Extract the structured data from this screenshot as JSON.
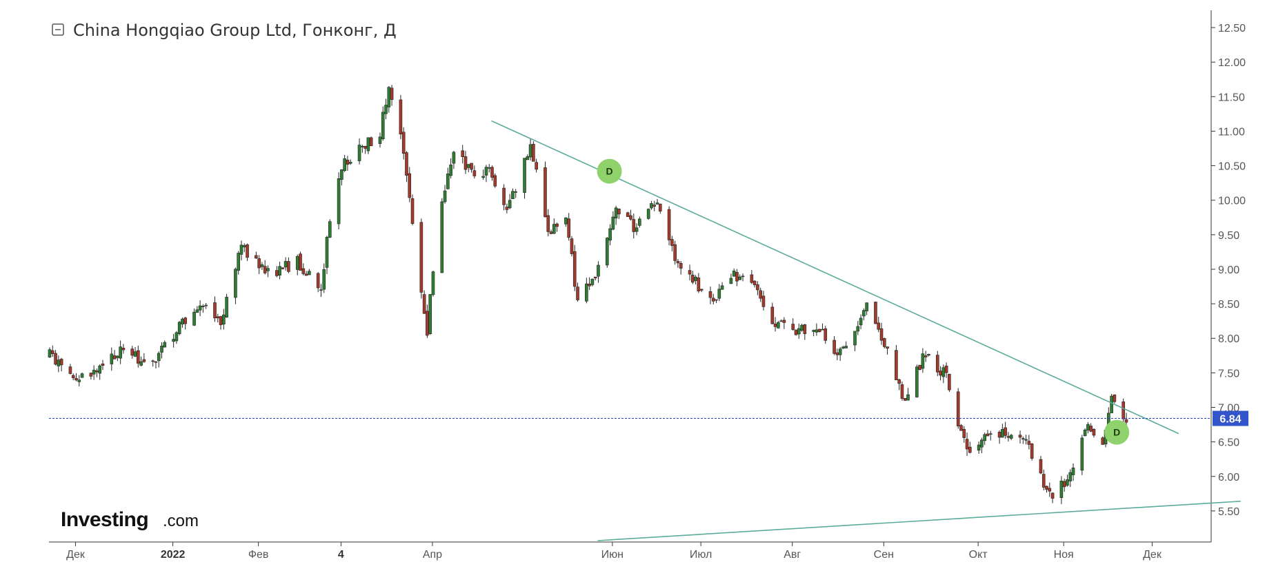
{
  "chart_title": "China Hongqiao Group Ltd, Гонконг, Д",
  "logo": {
    "brand": "Investing",
    "suffix": ".com"
  },
  "colors": {
    "up": "#2e7d32",
    "down": "#a33a2c",
    "trendline": "#5aab9a",
    "price_line": "#2244bb",
    "price_badge": "#3355cc",
    "dividend_marker": "#8fd16a"
  },
  "chart_data": {
    "type": "candlestick",
    "title": "China Hongqiao Group Ltd, Гонконг, Д",
    "ylim": [
      5.05,
      12.75
    ],
    "y_ticks": [
      "12.50",
      "12.00",
      "11.50",
      "11.00",
      "10.50",
      "10.00",
      "9.50",
      "9.00",
      "8.50",
      "8.00",
      "7.50",
      "7.00",
      "6.50",
      "6.00",
      "5.50"
    ],
    "y_tick_values": [
      12.5,
      12.0,
      11.5,
      11.0,
      10.5,
      10.0,
      9.5,
      9.0,
      8.5,
      8.0,
      7.5,
      7.0,
      6.5,
      6.0,
      5.5
    ],
    "x_axis": {
      "start": "2021-11-22",
      "end": "2022-12-21",
      "ticks": [
        {
          "label": "Дек",
          "date": "2021-12-01",
          "bold": false
        },
        {
          "label": "2022",
          "date": "2022-01-03",
          "bold": true
        },
        {
          "label": "Фев",
          "date": "2022-02-01",
          "bold": false
        },
        {
          "label": "4",
          "date": "2022-03-01",
          "bold": true
        },
        {
          "label": "Апр",
          "date": "2022-04-01",
          "bold": false
        },
        {
          "label": "Июн",
          "date": "2022-06-01",
          "bold": false
        },
        {
          "label": "Июл",
          "date": "2022-07-01",
          "bold": false
        },
        {
          "label": "Авг",
          "date": "2022-08-01",
          "bold": false
        },
        {
          "label": "Сен",
          "date": "2022-09-01",
          "bold": false
        },
        {
          "label": "Окт",
          "date": "2022-10-03",
          "bold": false
        },
        {
          "label": "Ноя",
          "date": "2022-11-01",
          "bold": false
        },
        {
          "label": "Дек",
          "date": "2022-12-01",
          "bold": false
        }
      ]
    },
    "last_price": 6.84,
    "last_price_label": "6.84",
    "close_path": [
      [
        "2021-11-22",
        7.75
      ],
      [
        "2021-11-30",
        7.4
      ],
      [
        "2021-12-08",
        7.5
      ],
      [
        "2021-12-16",
        7.8
      ],
      [
        "2021-12-27",
        7.65
      ],
      [
        "2022-01-05",
        8.15
      ],
      [
        "2022-01-12",
        8.5
      ],
      [
        "2022-01-19",
        8.25
      ],
      [
        "2022-01-26",
        9.3
      ],
      [
        "2022-02-04",
        8.95
      ],
      [
        "2022-02-14",
        9.1
      ],
      [
        "2022-02-22",
        8.75
      ],
      [
        "2022-02-25",
        9.75
      ],
      [
        "2022-03-01",
        10.5
      ],
      [
        "2022-03-08",
        10.75
      ],
      [
        "2022-03-14",
        11.0
      ],
      [
        "2022-03-17",
        11.6
      ],
      [
        "2022-03-21",
        10.9
      ],
      [
        "2022-03-25",
        9.7
      ],
      [
        "2022-03-30",
        8.1
      ],
      [
        "2022-04-02",
        9.5
      ],
      [
        "2022-04-08",
        10.7
      ],
      [
        "2022-04-14",
        10.4
      ],
      [
        "2022-04-21",
        10.4
      ],
      [
        "2022-04-26",
        9.8
      ],
      [
        "2022-05-04",
        10.8
      ],
      [
        "2022-05-10",
        9.5
      ],
      [
        "2022-05-16",
        9.8
      ],
      [
        "2022-05-20",
        8.5
      ],
      [
        "2022-05-26",
        8.9
      ],
      [
        "2022-06-02",
        9.8
      ],
      [
        "2022-06-09",
        9.6
      ],
      [
        "2022-06-16",
        10.0
      ],
      [
        "2022-06-22",
        9.2
      ],
      [
        "2022-06-29",
        8.8
      ],
      [
        "2022-07-05",
        8.6
      ],
      [
        "2022-07-12",
        8.9
      ],
      [
        "2022-07-19",
        8.7
      ],
      [
        "2022-07-26",
        8.2
      ],
      [
        "2022-08-02",
        8.1
      ],
      [
        "2022-08-09",
        8.2
      ],
      [
        "2022-08-16",
        7.8
      ],
      [
        "2022-08-23",
        8.1
      ],
      [
        "2022-08-26",
        8.5
      ],
      [
        "2022-09-01",
        7.9
      ],
      [
        "2022-09-08",
        7.1
      ],
      [
        "2022-09-15",
        7.8
      ],
      [
        "2022-09-22",
        7.45
      ],
      [
        "2022-09-26",
        6.7
      ],
      [
        "2022-09-30",
        6.4
      ],
      [
        "2022-10-07",
        6.7
      ],
      [
        "2022-10-14",
        6.55
      ],
      [
        "2022-10-19",
        6.5
      ],
      [
        "2022-10-24",
        6.0
      ],
      [
        "2022-10-27",
        5.7
      ],
      [
        "2022-11-01",
        5.9
      ],
      [
        "2022-11-04",
        6.2
      ],
      [
        "2022-11-09",
        6.7
      ],
      [
        "2022-11-14",
        6.4
      ],
      [
        "2022-11-17",
        7.15
      ],
      [
        "2022-11-22",
        6.84
      ]
    ],
    "volatility": 0.09,
    "trendlines": [
      {
        "name": "resistance",
        "start": [
          "2022-04-21",
          11.15
        ],
        "end": [
          "2022-12-10",
          6.62
        ]
      },
      {
        "name": "support",
        "start": [
          "2022-05-27",
          5.07
        ],
        "end": [
          "2022-12-31",
          5.64
        ]
      }
    ],
    "dividend_markers": [
      {
        "label": "D",
        "date": "2022-05-31",
        "value": 10.42
      },
      {
        "label": "D",
        "date": "2022-11-19",
        "value": 6.64
      }
    ]
  }
}
